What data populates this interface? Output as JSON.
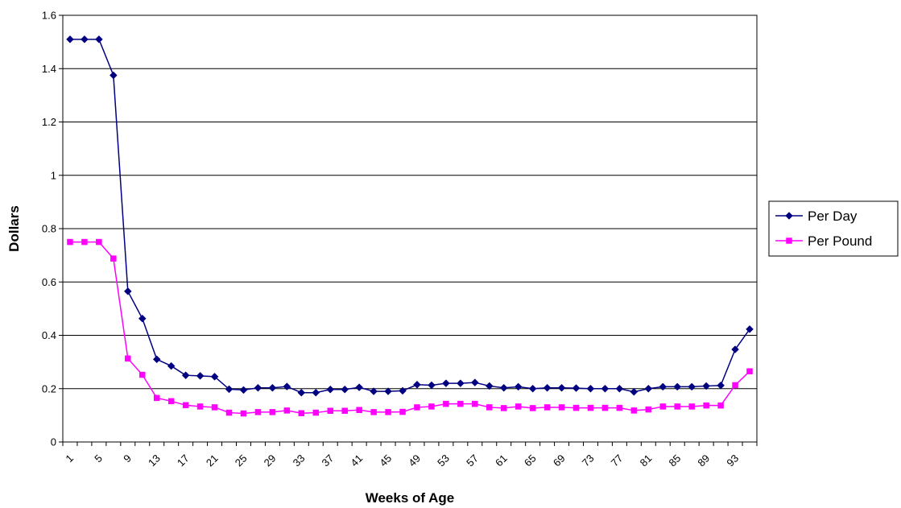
{
  "chart_data": {
    "type": "line",
    "title": "",
    "xlabel": "Weeks of Age",
    "ylabel": "Dollars",
    "ylim": [
      0,
      1.6
    ],
    "yticks": [
      "0",
      "0.2",
      "0.4",
      "0.6",
      "0.8",
      "1",
      "1.2",
      "1.4",
      "1.6"
    ],
    "grid": true,
    "legend_position": "right",
    "x": [
      1,
      3,
      5,
      7,
      9,
      11,
      13,
      15,
      17,
      19,
      21,
      23,
      25,
      27,
      29,
      31,
      33,
      35,
      37,
      39,
      41,
      43,
      45,
      47,
      49,
      51,
      53,
      55,
      57,
      59,
      61,
      63,
      65,
      67,
      69,
      71,
      73,
      75,
      77,
      79,
      81,
      83,
      85,
      87,
      89,
      91,
      93,
      95
    ],
    "xtick_labels": [
      "1",
      "5",
      "9",
      "13",
      "17",
      "21",
      "25",
      "29",
      "33",
      "37",
      "41",
      "45",
      "49",
      "53",
      "57",
      "61",
      "65",
      "69",
      "73",
      "77",
      "81",
      "85",
      "89",
      "93"
    ],
    "series": [
      {
        "name": "Per Day",
        "color": "#000080",
        "marker": "diamond",
        "values": [
          1.51,
          1.51,
          1.51,
          1.375,
          0.565,
          0.463,
          0.31,
          0.285,
          0.25,
          0.248,
          0.245,
          0.198,
          0.195,
          0.203,
          0.203,
          0.208,
          0.185,
          0.185,
          0.197,
          0.197,
          0.205,
          0.19,
          0.19,
          0.192,
          0.215,
          0.213,
          0.22,
          0.22,
          0.223,
          0.21,
          0.203,
          0.207,
          0.2,
          0.203,
          0.203,
          0.202,
          0.2,
          0.2,
          0.2,
          0.188,
          0.2,
          0.207,
          0.207,
          0.207,
          0.21,
          0.212,
          0.347,
          0.423
        ]
      },
      {
        "name": "Per Pound",
        "color": "#ff00ff",
        "marker": "square",
        "values": [
          0.75,
          0.75,
          0.75,
          0.688,
          0.313,
          0.252,
          0.165,
          0.153,
          0.138,
          0.133,
          0.13,
          0.11,
          0.107,
          0.112,
          0.112,
          0.118,
          0.108,
          0.11,
          0.117,
          0.117,
          0.12,
          0.112,
          0.112,
          0.113,
          0.13,
          0.133,
          0.143,
          0.143,
          0.143,
          0.13,
          0.127,
          0.133,
          0.127,
          0.13,
          0.13,
          0.128,
          0.128,
          0.128,
          0.128,
          0.118,
          0.122,
          0.133,
          0.133,
          0.133,
          0.137,
          0.137,
          0.213,
          0.265
        ]
      }
    ]
  }
}
